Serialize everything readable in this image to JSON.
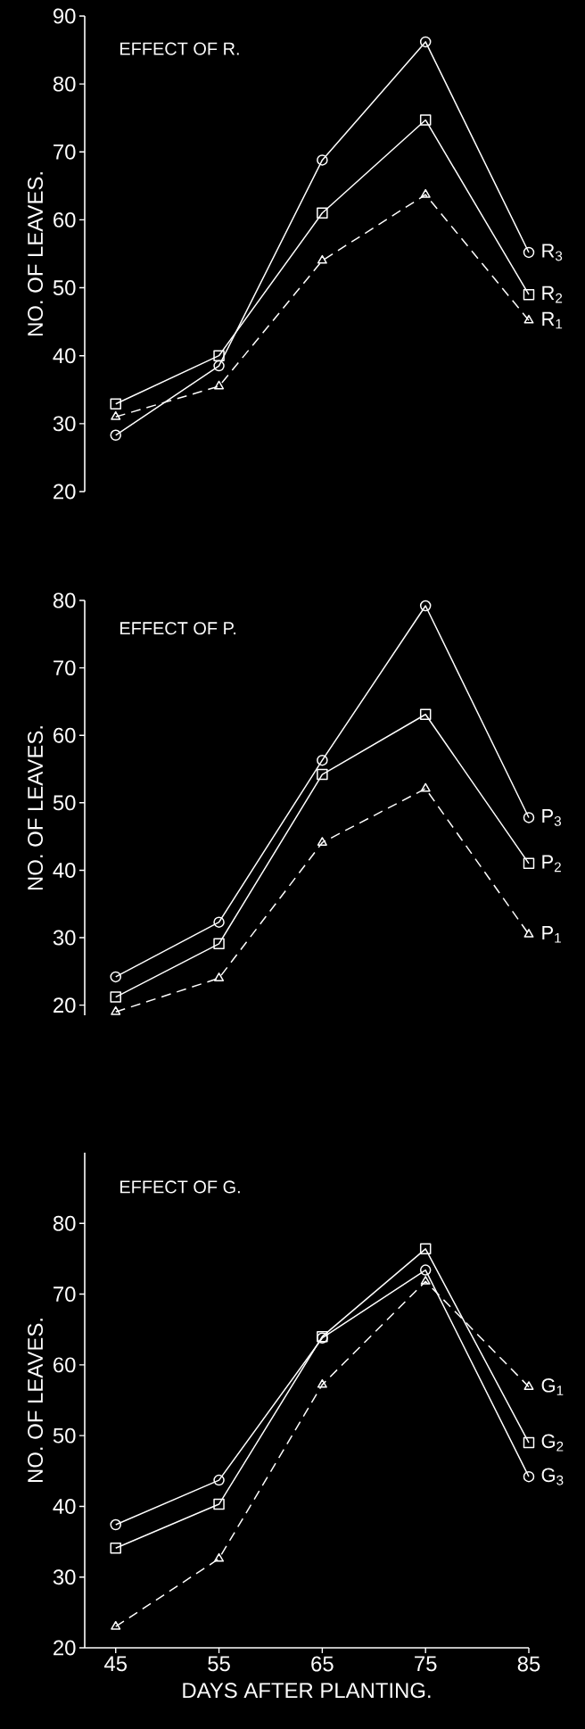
{
  "chart_data": [
    {
      "type": "line",
      "title": "EFFECT OF R.",
      "ylabel": "NO. OF LEAVES.",
      "x": [
        45,
        55,
        65,
        75,
        85
      ],
      "ylim": [
        20,
        90
      ],
      "yticks": [
        20,
        30,
        40,
        50,
        60,
        70,
        80,
        90
      ],
      "tick_labels": "y",
      "series": [
        {
          "name": "R$_{3}$",
          "color": "#ffffff",
          "marker": "circle",
          "line_style": "solid",
          "values": [
            28.3,
            38.5,
            68.8,
            86.2,
            55.2
          ]
        },
        {
          "name": "R$_{2}$",
          "color": "#ffffff",
          "marker": "square",
          "line_style": "solid",
          "values": [
            32.9,
            40,
            61,
            74.7,
            49
          ]
        },
        {
          "name": "R$_{1}$",
          "color": "#ffffff",
          "marker": "triangle",
          "line_style": "dashed",
          "values": [
            31,
            35.5,
            54,
            63.7,
            45.2
          ]
        }
      ]
    },
    {
      "type": "line",
      "title": "EFFECT OF P.",
      "ylabel": "NO. OF LEAVES.",
      "x": [
        45,
        55,
        65,
        75,
        85
      ],
      "ylim": [
        18.5,
        80
      ],
      "yticks": [
        20,
        30,
        40,
        50,
        60,
        70,
        80
      ],
      "tick_labels": "y",
      "series": [
        {
          "name": "P$_{3}$",
          "color": "#ffffff",
          "marker": "circle",
          "line_style": "solid",
          "values": [
            24.2,
            32.3,
            56.3,
            79.2,
            47.8
          ]
        },
        {
          "name": "P$_{2}$",
          "color": "#ffffff",
          "marker": "square",
          "line_style": "solid",
          "values": [
            21.2,
            29.1,
            54.2,
            63.1,
            41
          ]
        },
        {
          "name": "P$_{1}$",
          "color": "#ffffff",
          "marker": "triangle",
          "line_style": "dashed",
          "values": [
            19,
            24,
            44.1,
            52.1,
            30.5
          ]
        }
      ]
    },
    {
      "type": "line",
      "title": "EFFECT OF G.",
      "xlabel": "DAYS AFTER PLANTING.",
      "ylabel": "NO. OF LEAVES.",
      "x": [
        45,
        55,
        65,
        75,
        85
      ],
      "xlim": [
        42,
        85
      ],
      "xticks": [
        45,
        55,
        65,
        75,
        85
      ],
      "ylim": [
        20,
        90
      ],
      "yticks": [
        20,
        30,
        40,
        50,
        60,
        70,
        80
      ],
      "series": [
        {
          "name": "G$_{1}$",
          "color": "#ffffff",
          "marker": "triangle",
          "line_style": "dashed",
          "values": [
            23,
            32.6,
            57.2,
            71.8,
            56.9
          ]
        },
        {
          "name": "G$_{2}$",
          "color": "#ffffff",
          "marker": "square",
          "line_style": "solid",
          "values": [
            34.1,
            40.3,
            64,
            76.4,
            49
          ]
        },
        {
          "name": "G$_{3}$",
          "color": "#ffffff",
          "marker": "circle",
          "line_style": "solid",
          "values": [
            37.4,
            43.7,
            63.8,
            73.4,
            44.2
          ]
        }
      ]
    }
  ]
}
